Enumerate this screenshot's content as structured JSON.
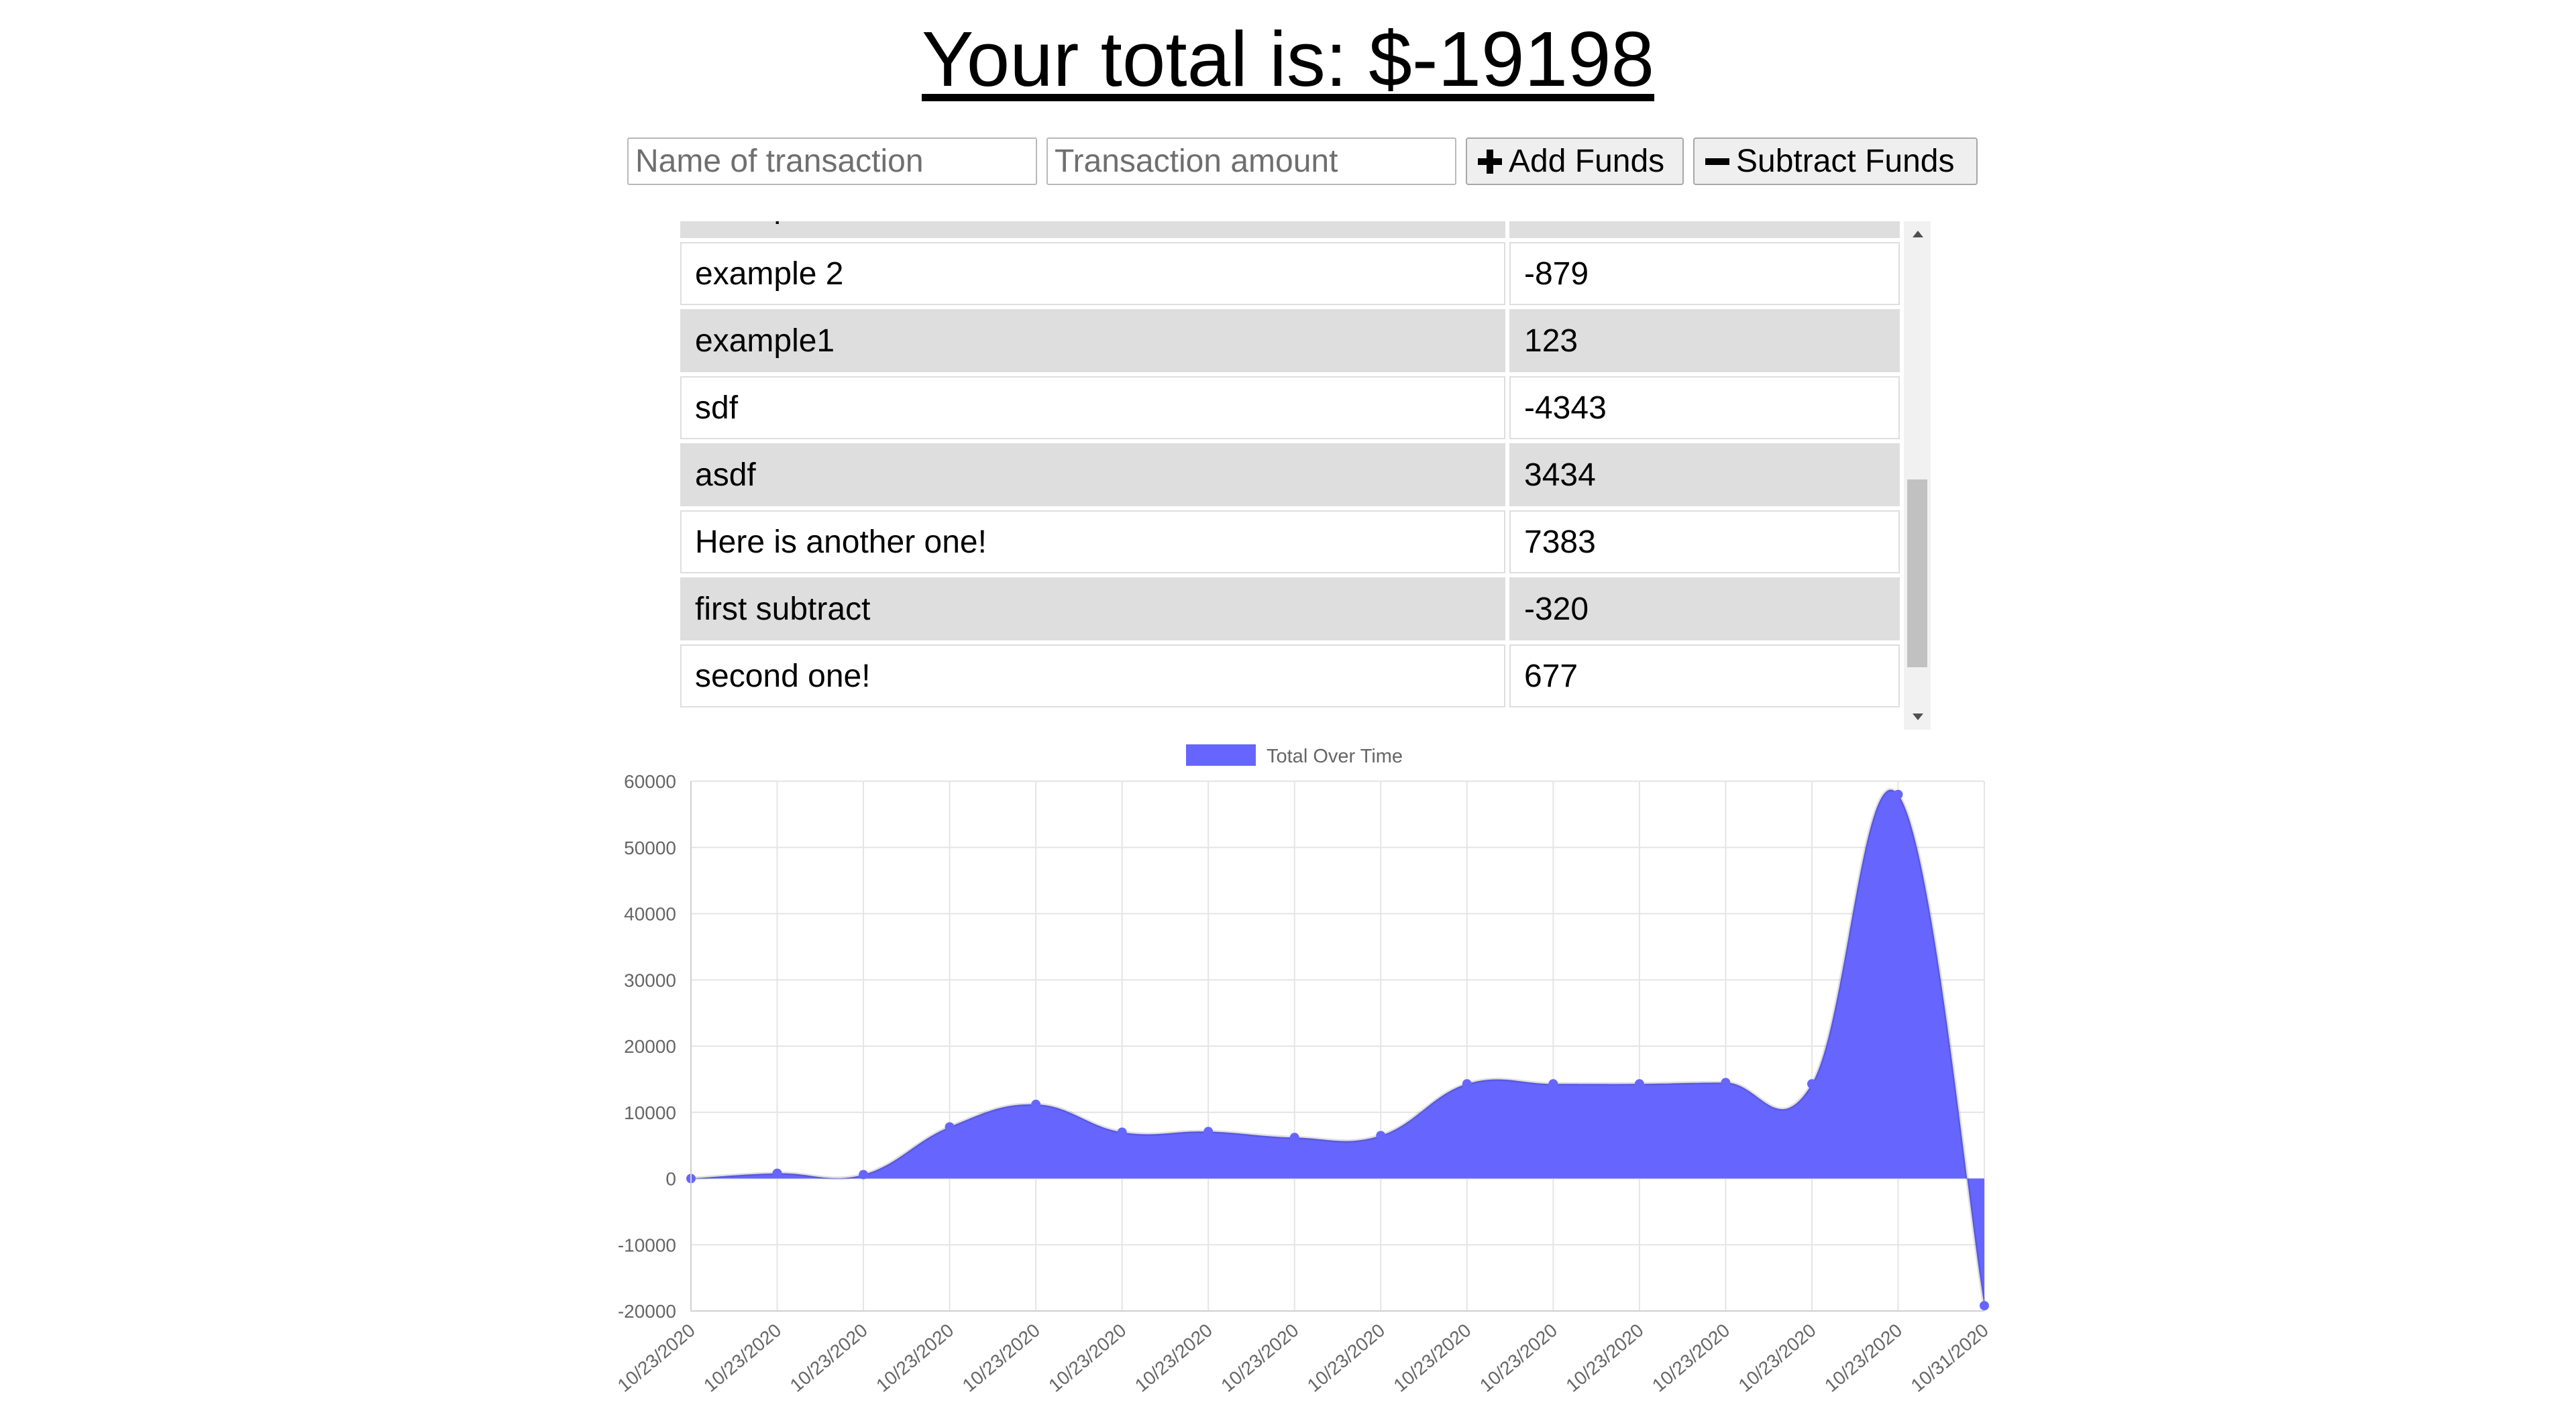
{
  "header": {
    "title": "Your total is: $-19198"
  },
  "form": {
    "name_placeholder": "Name of transaction",
    "amount_placeholder": "Transaction amount",
    "add_label": "Add Funds",
    "subtract_label": "Subtract Funds"
  },
  "transactions": [
    {
      "name": "example",
      "amount": ""
    },
    {
      "name": "example 2",
      "amount": "-879"
    },
    {
      "name": "example1",
      "amount": "123"
    },
    {
      "name": "sdf",
      "amount": "-4343"
    },
    {
      "name": "asdf",
      "amount": "3434"
    },
    {
      "name": "Here is another one!",
      "amount": "7383"
    },
    {
      "name": "first subtract",
      "amount": "-320"
    },
    {
      "name": "second one!",
      "amount": "677"
    }
  ],
  "colors": {
    "fill": "#6666ff",
    "point": "#6666ff",
    "grid": "#e5e5e5"
  },
  "chart_data": {
    "type": "area",
    "legend": "Total Over Time",
    "legend_position": "top",
    "x": [
      "10/23/2020",
      "10/23/2020",
      "10/23/2020",
      "10/23/2020",
      "10/23/2020",
      "10/23/2020",
      "10/23/2020",
      "10/23/2020",
      "10/23/2020",
      "10/23/2020",
      "10/23/2020",
      "10/23/2020",
      "10/23/2020",
      "10/23/2020",
      "10/23/2020",
      "10/31/2020"
    ],
    "series": [
      {
        "name": "Total Over Time",
        "values": [
          0,
          800,
          600,
          7800,
          11200,
          7000,
          7100,
          6200,
          6500,
          14300,
          14300,
          14300,
          14500,
          14300,
          58000,
          -19198
        ]
      }
    ],
    "ylim": [
      -20000,
      60000
    ],
    "yticks": [
      60000,
      50000,
      40000,
      30000,
      20000,
      10000,
      0,
      -10000,
      -20000
    ],
    "grid": true
  }
}
